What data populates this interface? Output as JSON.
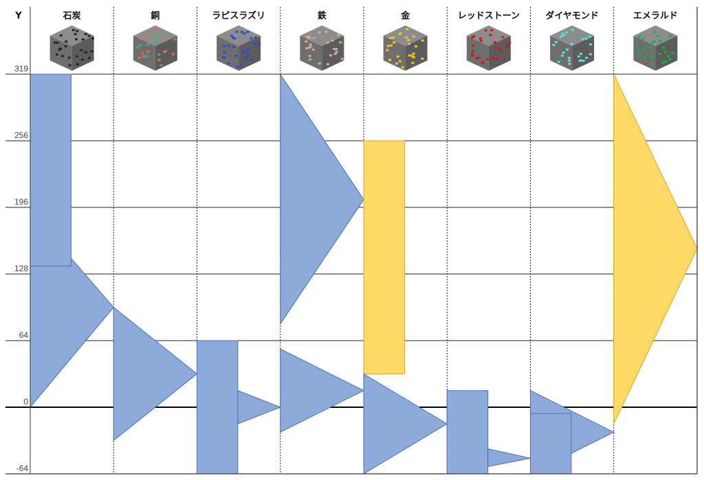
{
  "chart_data": {
    "type": "range-shapes",
    "y_axis_label": "Y",
    "y_ticks": [
      319,
      256,
      196,
      128,
      64,
      0,
      -64
    ],
    "ylim": [
      -64,
      319
    ],
    "grid": true,
    "colors": {
      "blue_fill": "#8eaadb",
      "blue_stroke": "#4a6fb5",
      "yellow_fill": "#ffd966",
      "yellow_stroke": "#d6a62c"
    },
    "categories": [
      {
        "label": "石炭",
        "ore_color": "#262626",
        "shapes": [
          {
            "kind": "triangle",
            "range": [
              0,
              192
            ],
            "peak": 96,
            "color": "blue"
          },
          {
            "kind": "rect",
            "range": [
              136,
              319
            ],
            "color": "blue"
          }
        ]
      },
      {
        "label": "銅",
        "ore_color": "#e0703a",
        "ore_color2": "#3fae87",
        "shapes": [
          {
            "kind": "triangle",
            "range": [
              -32,
              96
            ],
            "peak": 32,
            "color": "blue"
          }
        ]
      },
      {
        "label": "ラピスラズリ",
        "ore_color": "#1f4fd8",
        "shapes": [
          {
            "kind": "rect",
            "range": [
              -64,
              64
            ],
            "color": "blue"
          },
          {
            "kind": "triangle",
            "range": [
              -16,
              16
            ],
            "peak": 0,
            "color": "blue"
          }
        ]
      },
      {
        "label": "鉄",
        "ore_color": "#d8a98a",
        "shapes": [
          {
            "kind": "triangle",
            "range": [
              80,
              319
            ],
            "peak": 203,
            "color": "blue"
          },
          {
            "kind": "triangle",
            "range": [
              -24,
              56
            ],
            "peak": 16,
            "color": "blue"
          }
        ]
      },
      {
        "label": "金",
        "ore_color": "#f5c518",
        "shapes": [
          {
            "kind": "rect",
            "range": [
              32,
              256
            ],
            "color": "yellow"
          },
          {
            "kind": "triangle",
            "range": [
              -64,
              32
            ],
            "peak": -16,
            "color": "blue"
          }
        ]
      },
      {
        "label": "レッドストーン",
        "ore_color": "#e01010",
        "shapes": [
          {
            "kind": "rect",
            "range": [
              -64,
              16
            ],
            "color": "blue"
          },
          {
            "kind": "triangle",
            "range": [
              -57,
              -40
            ],
            "peak": -49,
            "color": "blue"
          }
        ]
      },
      {
        "label": "ダイヤモンド",
        "ore_color": "#5fe0d8",
        "shapes": [
          {
            "kind": "triangle",
            "range": [
              -64,
              16
            ],
            "peak": -24,
            "color": "blue"
          },
          {
            "kind": "rect",
            "range": [
              -64,
              -6
            ],
            "color": "blue"
          }
        ]
      },
      {
        "label": "エメラルド",
        "ore_color": "#17b33c",
        "shapes": [
          {
            "kind": "triangle",
            "range": [
              -16,
              319
            ],
            "peak": 154,
            "color": "yellow"
          }
        ]
      }
    ]
  }
}
